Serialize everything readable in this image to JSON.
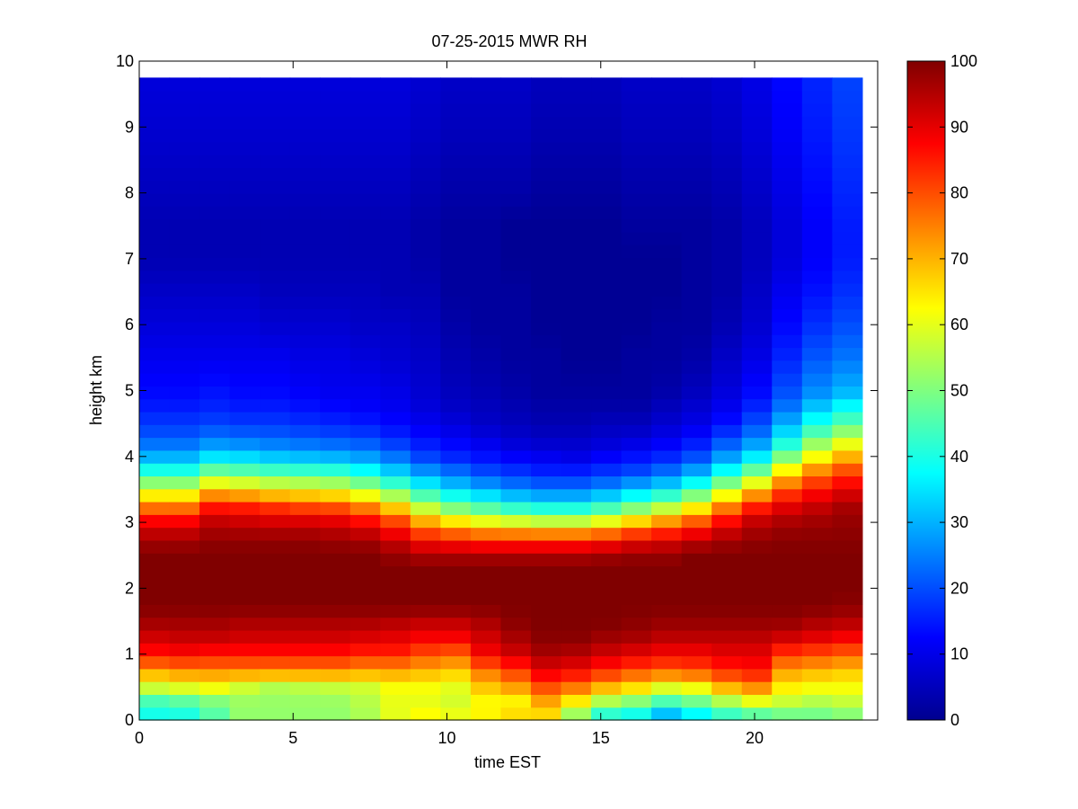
{
  "chart_data": {
    "type": "heatmap",
    "title": "07-25-2015 MWR RH",
    "xlabel": "time EST",
    "ylabel": "height km",
    "xlim": [
      0,
      24
    ],
    "ylim": [
      0,
      10
    ],
    "x_ticks": [
      0,
      5,
      10,
      15,
      20
    ],
    "y_ticks": [
      0,
      1,
      2,
      3,
      4,
      5,
      6,
      7,
      8,
      9,
      10
    ],
    "x_tick_labels": [
      "0",
      "5",
      "10",
      "15",
      "20"
    ],
    "y_tick_labels": [
      "0",
      "1",
      "2",
      "3",
      "4",
      "5",
      "6",
      "7",
      "8",
      "9",
      "10"
    ],
    "colorbar": {
      "colormap": "jet",
      "range": [
        0,
        100
      ],
      "ticks": [
        0,
        10,
        20,
        30,
        40,
        50,
        60,
        70,
        80,
        90,
        100
      ],
      "tick_labels": [
        "0",
        "10",
        "20",
        "30",
        "40",
        "50",
        "60",
        "70",
        "80",
        "90",
        "100"
      ]
    },
    "time_hours": [
      0,
      1,
      2,
      3,
      4,
      5,
      6,
      7,
      8,
      9,
      10,
      11,
      12,
      13,
      14,
      15,
      16,
      17,
      18,
      19,
      20,
      21,
      22,
      23
    ],
    "time_range": [
      0,
      23.5
    ],
    "height_top_km": 9.75,
    "profile_heights_km": [
      0.0,
      0.25,
      0.5,
      0.75,
      1.0,
      1.25,
      1.5,
      1.75,
      2.0,
      2.25,
      2.5,
      2.75,
      3.0,
      3.25,
      3.5,
      3.75,
      4.0,
      4.25,
      4.5,
      4.75,
      5.0,
      5.5,
      6.0,
      6.5,
      7.0,
      7.5,
      8.0,
      8.5,
      9.0,
      9.75
    ],
    "rh_profiles_percent": [
      [
        38,
        42,
        58,
        72,
        86,
        92,
        97,
        100,
        100,
        100,
        100,
        96,
        89,
        75,
        58,
        42,
        30,
        22,
        18,
        15,
        13,
        11,
        9,
        7,
        5,
        5,
        6,
        7,
        8,
        9
      ],
      [
        38,
        44,
        60,
        74,
        87,
        93,
        97,
        100,
        100,
        100,
        100,
        96,
        89,
        75,
        58,
        42,
        30,
        22,
        18,
        15,
        13,
        11,
        9,
        7,
        5,
        5,
        6,
        7,
        8,
        9
      ],
      [
        45,
        48,
        62,
        74,
        86,
        93,
        97,
        100,
        100,
        100,
        100,
        98,
        94,
        85,
        68,
        50,
        35,
        25,
        19,
        16,
        14,
        11,
        9,
        7,
        5,
        5,
        6,
        7,
        8,
        9
      ],
      [
        52,
        52,
        58,
        74,
        86,
        92,
        96,
        100,
        100,
        100,
        100,
        98,
        93,
        84,
        66,
        48,
        34,
        24,
        18,
        15,
        13,
        11,
        9,
        7,
        5,
        5,
        6,
        7,
        8,
        9
      ],
      [
        52,
        52,
        55,
        74,
        86,
        92,
        96,
        100,
        100,
        100,
        100,
        98,
        92,
        82,
        63,
        46,
        32,
        23,
        18,
        15,
        13,
        11,
        8,
        6,
        5,
        5,
        6,
        7,
        8,
        9
      ],
      [
        52,
        52,
        56,
        74,
        86,
        92,
        96,
        100,
        100,
        100,
        100,
        98,
        92,
        80,
        62,
        45,
        31,
        22,
        17,
        14,
        12,
        10,
        8,
        6,
        5,
        5,
        6,
        7,
        8,
        9
      ],
      [
        52,
        52,
        57,
        74,
        86,
        92,
        96,
        100,
        100,
        100,
        100,
        97,
        91,
        79,
        60,
        44,
        30,
        21,
        16,
        13,
        11,
        10,
        8,
        6,
        5,
        5,
        6,
        7,
        8,
        9
      ],
      [
        54,
        55,
        58,
        72,
        84,
        91,
        96,
        100,
        100,
        100,
        100,
        96,
        88,
        74,
        55,
        40,
        28,
        20,
        15,
        12,
        11,
        9,
        7,
        6,
        5,
        5,
        6,
        7,
        8,
        9
      ],
      [
        60,
        60,
        62,
        72,
        84,
        90,
        95,
        100,
        100,
        100,
        98,
        92,
        82,
        66,
        48,
        34,
        24,
        17,
        13,
        11,
        10,
        8,
        7,
        5,
        5,
        5,
        6,
        7,
        8,
        9
      ],
      [
        64,
        60,
        62,
        70,
        80,
        88,
        94,
        100,
        100,
        100,
        96,
        86,
        72,
        55,
        40,
        28,
        19,
        14,
        11,
        9,
        8,
        7,
        6,
        5,
        4,
        4,
        5,
        6,
        7,
        8
      ],
      [
        62,
        58,
        60,
        68,
        78,
        88,
        94,
        100,
        100,
        100,
        96,
        84,
        66,
        48,
        34,
        24,
        16,
        12,
        9,
        7,
        6,
        5,
        4,
        3,
        3,
        3,
        4,
        5,
        6,
        7
      ],
      [
        64,
        62,
        68,
        76,
        88,
        92,
        96,
        100,
        100,
        100,
        96,
        82,
        62,
        44,
        30,
        20,
        14,
        10,
        7,
        6,
        5,
        4,
        3,
        3,
        3,
        3,
        4,
        5,
        6,
        7
      ],
      [
        68,
        62,
        72,
        82,
        92,
        96,
        99,
        100,
        100,
        100,
        96,
        82,
        60,
        40,
        26,
        18,
        12,
        8,
        6,
        5,
        4,
        3,
        3,
        3,
        2,
        2,
        4,
        5,
        6,
        7
      ],
      [
        64,
        70,
        80,
        90,
        96,
        99,
        100,
        100,
        100,
        100,
        96,
        82,
        58,
        38,
        24,
        16,
        11,
        7,
        5,
        4,
        3,
        3,
        2,
        2,
        2,
        2,
        3,
        4,
        5,
        6
      ],
      [
        48,
        62,
        76,
        88,
        95,
        99,
        100,
        100,
        100,
        100,
        96,
        82,
        58,
        38,
        24,
        16,
        10,
        7,
        5,
        4,
        3,
        2,
        2,
        2,
        2,
        2,
        3,
        4,
        5,
        6
      ],
      [
        36,
        52,
        70,
        84,
        92,
        97,
        100,
        100,
        100,
        100,
        97,
        84,
        62,
        42,
        27,
        18,
        12,
        8,
        6,
        4,
        3,
        2,
        2,
        2,
        2,
        2,
        3,
        4,
        5,
        6
      ],
      [
        34,
        48,
        66,
        80,
        90,
        96,
        99,
        100,
        100,
        100,
        98,
        88,
        68,
        48,
        32,
        20,
        14,
        9,
        6,
        4,
        3,
        3,
        2,
        2,
        2,
        3,
        4,
        5,
        6,
        7
      ],
      [
        25,
        42,
        60,
        78,
        88,
        94,
        98,
        100,
        100,
        100,
        98,
        90,
        74,
        54,
        36,
        24,
        16,
        11,
        8,
        6,
        4,
        3,
        3,
        2,
        2,
        3,
        4,
        5,
        6,
        7
      ],
      [
        32,
        46,
        62,
        80,
        88,
        94,
        98,
        100,
        100,
        100,
        100,
        93,
        80,
        62,
        44,
        30,
        20,
        14,
        10,
        8,
        6,
        4,
        3,
        3,
        3,
        3,
        4,
        5,
        6,
        7
      ],
      [
        38,
        52,
        70,
        84,
        90,
        94,
        98,
        100,
        100,
        100,
        100,
        96,
        88,
        74,
        56,
        40,
        28,
        20,
        14,
        11,
        9,
        7,
        5,
        4,
        4,
        4,
        5,
        6,
        7,
        8
      ],
      [
        40,
        58,
        74,
        86,
        90,
        94,
        98,
        100,
        100,
        100,
        100,
        98,
        94,
        84,
        68,
        50,
        36,
        26,
        20,
        16,
        13,
        10,
        8,
        7,
        6,
        6,
        7,
        8,
        9,
        10
      ],
      [
        45,
        56,
        64,
        72,
        82,
        92,
        98,
        100,
        100,
        100,
        100,
        99,
        96,
        90,
        80,
        66,
        50,
        38,
        30,
        24,
        20,
        16,
        13,
        11,
        9,
        9,
        10,
        11,
        12,
        13
      ],
      [
        46,
        54,
        62,
        70,
        80,
        90,
        96,
        100,
        100,
        100,
        100,
        99,
        97,
        93,
        86,
        76,
        62,
        50,
        40,
        32,
        26,
        21,
        17,
        14,
        12,
        12,
        13,
        14,
        15,
        16
      ],
      [
        48,
        56,
        62,
        68,
        78,
        88,
        95,
        99,
        100,
        100,
        100,
        99,
        98,
        96,
        90,
        82,
        70,
        58,
        46,
        38,
        30,
        24,
        20,
        17,
        15,
        15,
        16,
        17,
        18,
        19
      ]
    ]
  }
}
